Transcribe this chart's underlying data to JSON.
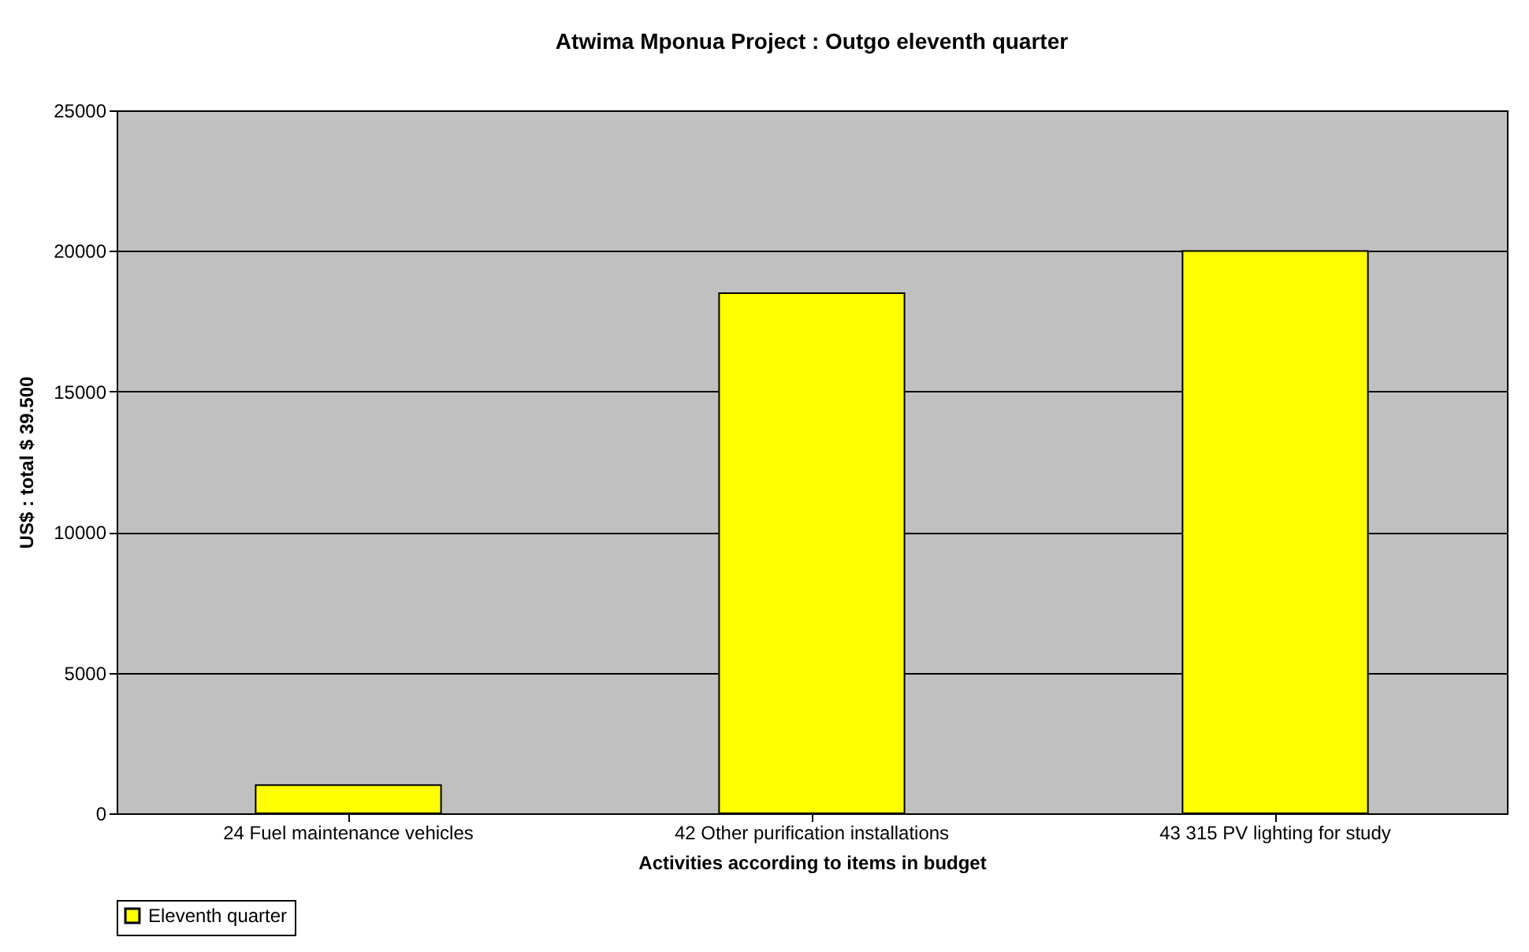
{
  "chart_data": {
    "type": "bar",
    "title": "Atwima Mponua Project : Outgo eleventh quarter",
    "xlabel": "Activities according to items in budget",
    "ylabel": "US$ : total $ 39.500",
    "categories": [
      "24 Fuel maintenance vehicles",
      "42 Other purification installations",
      "43 315 PV lighting for study"
    ],
    "series": [
      {
        "name": "Eleventh quarter",
        "color": "#ffff00",
        "values": [
          1000,
          18500,
          20000
        ]
      }
    ],
    "ylim": [
      0,
      25000
    ],
    "yticks": [
      0,
      5000,
      10000,
      15000,
      20000,
      25000
    ],
    "grid": "y",
    "legend": "bottom"
  }
}
